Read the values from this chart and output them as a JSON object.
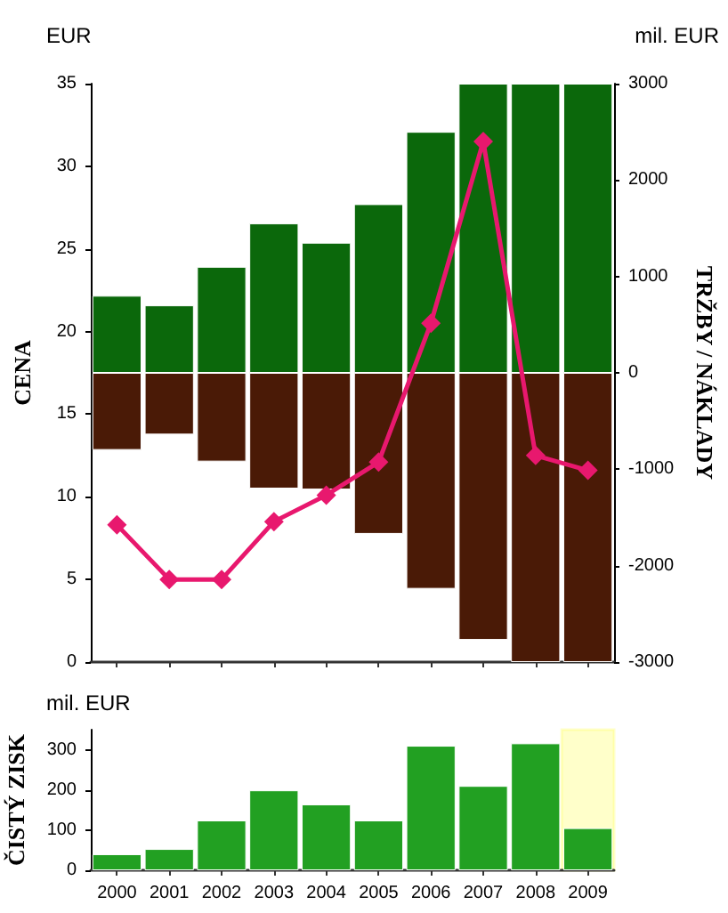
{
  "chart_data": [
    {
      "type": "bar",
      "ylabel": "CENA",
      "y2label": "TRŽBY / NÁKLADY",
      "annotations": [
        "EUR",
        "mil. EUR"
      ],
      "categories": [
        "2000",
        "2001",
        "2002",
        "2003",
        "2004",
        "2005",
        "2006",
        "2007",
        "2008",
        "2009"
      ],
      "stacked": true,
      "tick_labels": "y",
      "ylim": [
        0,
        35
      ],
      "yticks": [
        0,
        5,
        10,
        15,
        20,
        25,
        30,
        35
      ],
      "y2lim": [
        -3000,
        3000
      ],
      "y2ticks": [
        -3000,
        -2000,
        -1000,
        0,
        1000,
        2000,
        3000
      ],
      "series": [
        {
          "color": "#0b680b",
          "axis": "y2",
          "values": [
            800,
            700,
            1100,
            1550,
            1350,
            1750,
            2500,
            3000,
            3000,
            3000
          ]
        },
        {
          "color": "#4a1a06",
          "axis": "y2",
          "values": [
            -800,
            -640,
            -920,
            -1200,
            -1210,
            -1670,
            -2240,
            -2770,
            -3000,
            -3000
          ]
        },
        {
          "type": "line",
          "color": "#e8186e",
          "marker": "diamond",
          "values": [
            8.3,
            5.0,
            5.0,
            8.5,
            10.1,
            12.1,
            20.5,
            31.5,
            12.5,
            11.6
          ]
        }
      ]
    },
    {
      "type": "bar",
      "ylabel": "ČISTÝ ZISK",
      "annotations": [
        "mil. EUR"
      ],
      "categories": [
        "2000",
        "2001",
        "2002",
        "2003",
        "2004",
        "2005",
        "2006",
        "2007",
        "2008",
        "2009"
      ],
      "ylim": [
        0,
        350
      ],
      "yticks": [
        0,
        100,
        200,
        300
      ],
      "series": [
        {
          "color": "#22a022",
          "values": [
            40,
            53,
            124,
            199,
            164,
            124,
            310,
            210,
            316,
            105
          ]
        }
      ],
      "bands": [
        {
          "axis": "x",
          "from": "2009",
          "to": "2009",
          "color": "#ffff66"
        }
      ]
    }
  ]
}
